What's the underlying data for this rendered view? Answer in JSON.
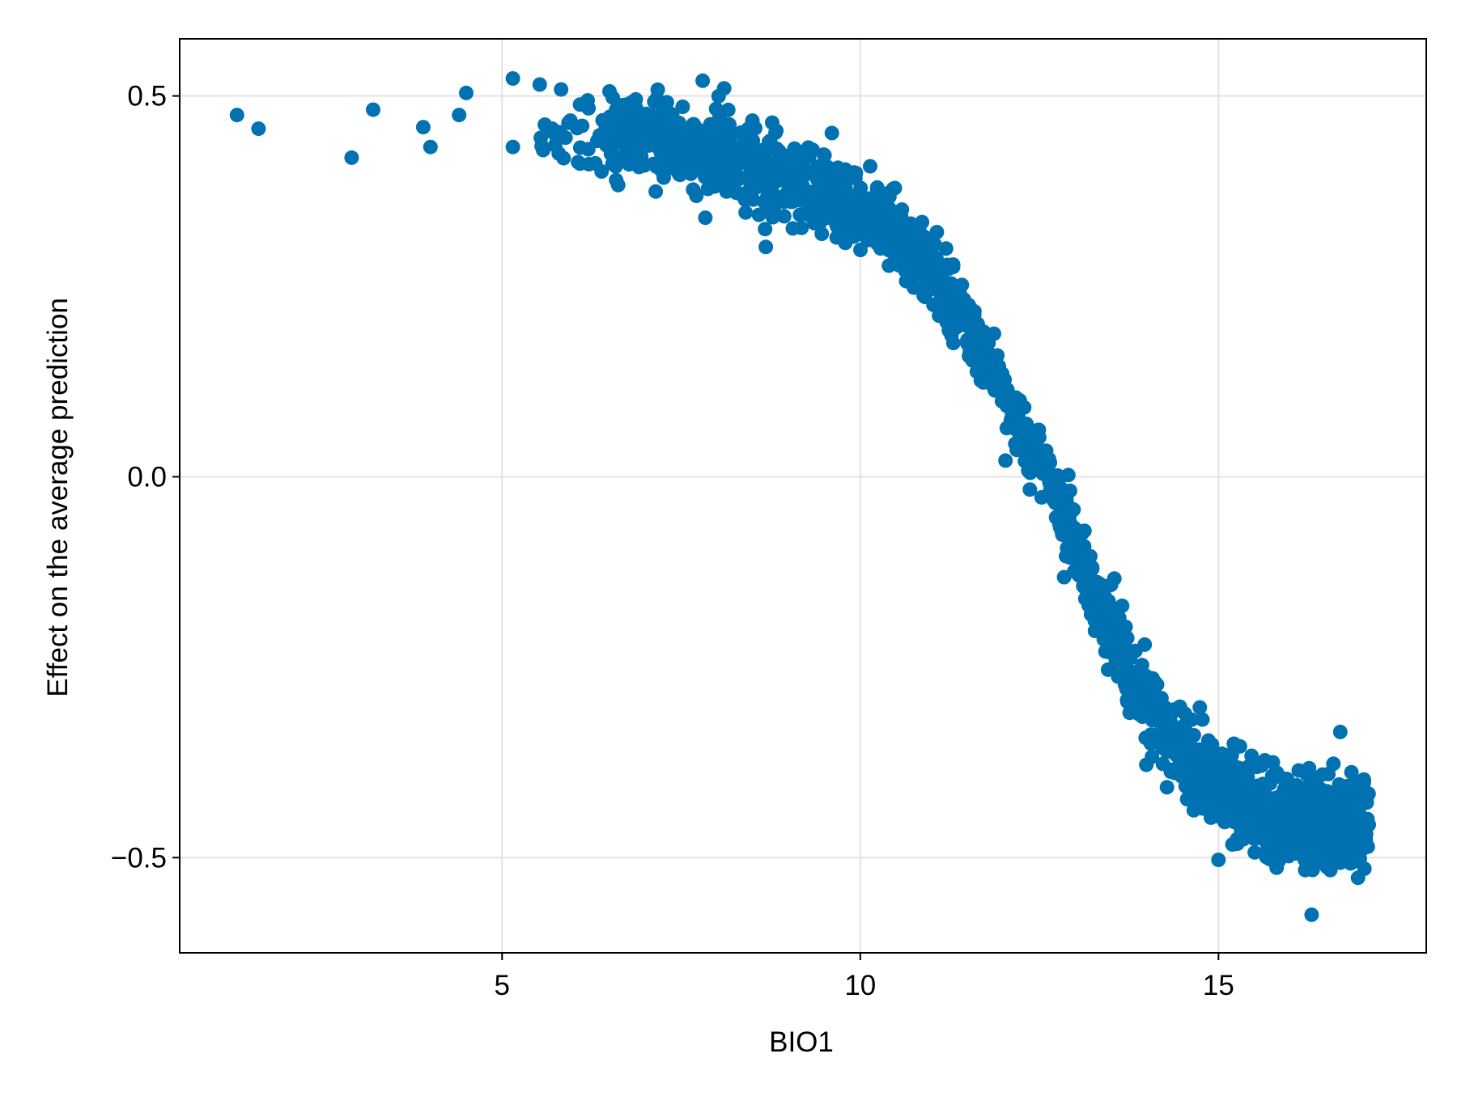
{
  "chart_data": {
    "type": "scatter",
    "title": "",
    "xlabel": "BIO1",
    "ylabel": "Effect on the average prediction",
    "xlim": [
      0.5,
      17.9
    ],
    "ylim": [
      -0.625,
      0.575
    ],
    "xticks": [
      5,
      10,
      15
    ],
    "xtick_labels": [
      "5",
      "10",
      "15"
    ],
    "yticks": [
      -0.5,
      0.0,
      0.5
    ],
    "ytick_labels": [
      "−0.5",
      "0.0",
      "0.5"
    ],
    "grid": true,
    "legend": "none",
    "marker_color": "#0072b2",
    "point_count": 2000,
    "trend": [
      [
        1.3,
        0.47
      ],
      [
        3.0,
        0.47
      ],
      [
        5.0,
        0.465
      ],
      [
        7.0,
        0.445
      ],
      [
        8.5,
        0.41
      ],
      [
        9.5,
        0.375
      ],
      [
        10.5,
        0.32
      ],
      [
        11.0,
        0.27
      ],
      [
        11.5,
        0.2
      ],
      [
        12.0,
        0.11
      ],
      [
        12.5,
        0.01
      ],
      [
        13.0,
        -0.09
      ],
      [
        13.5,
        -0.2
      ],
      [
        14.0,
        -0.3
      ],
      [
        14.5,
        -0.37
      ],
      [
        15.0,
        -0.41
      ],
      [
        15.5,
        -0.435
      ],
      [
        16.0,
        -0.45
      ],
      [
        16.5,
        -0.455
      ],
      [
        17.0,
        -0.45
      ]
    ],
    "outliers": [
      [
        1.3,
        0.475
      ],
      [
        1.6,
        0.457
      ],
      [
        2.9,
        0.419
      ],
      [
        3.2,
        0.482
      ],
      [
        3.9,
        0.459
      ],
      [
        4.0,
        0.433
      ],
      [
        4.4,
        0.475
      ],
      [
        4.5,
        0.504
      ],
      [
        5.15,
        0.523
      ],
      [
        5.15,
        0.433
      ],
      [
        6.5,
        0.506
      ],
      [
        7.8,
        0.52
      ],
      [
        8.1,
        0.51
      ],
      [
        16.7,
        -0.335
      ],
      [
        15.3,
        -0.354
      ],
      [
        15.0,
        -0.503
      ],
      [
        16.3,
        -0.575
      ]
    ]
  }
}
